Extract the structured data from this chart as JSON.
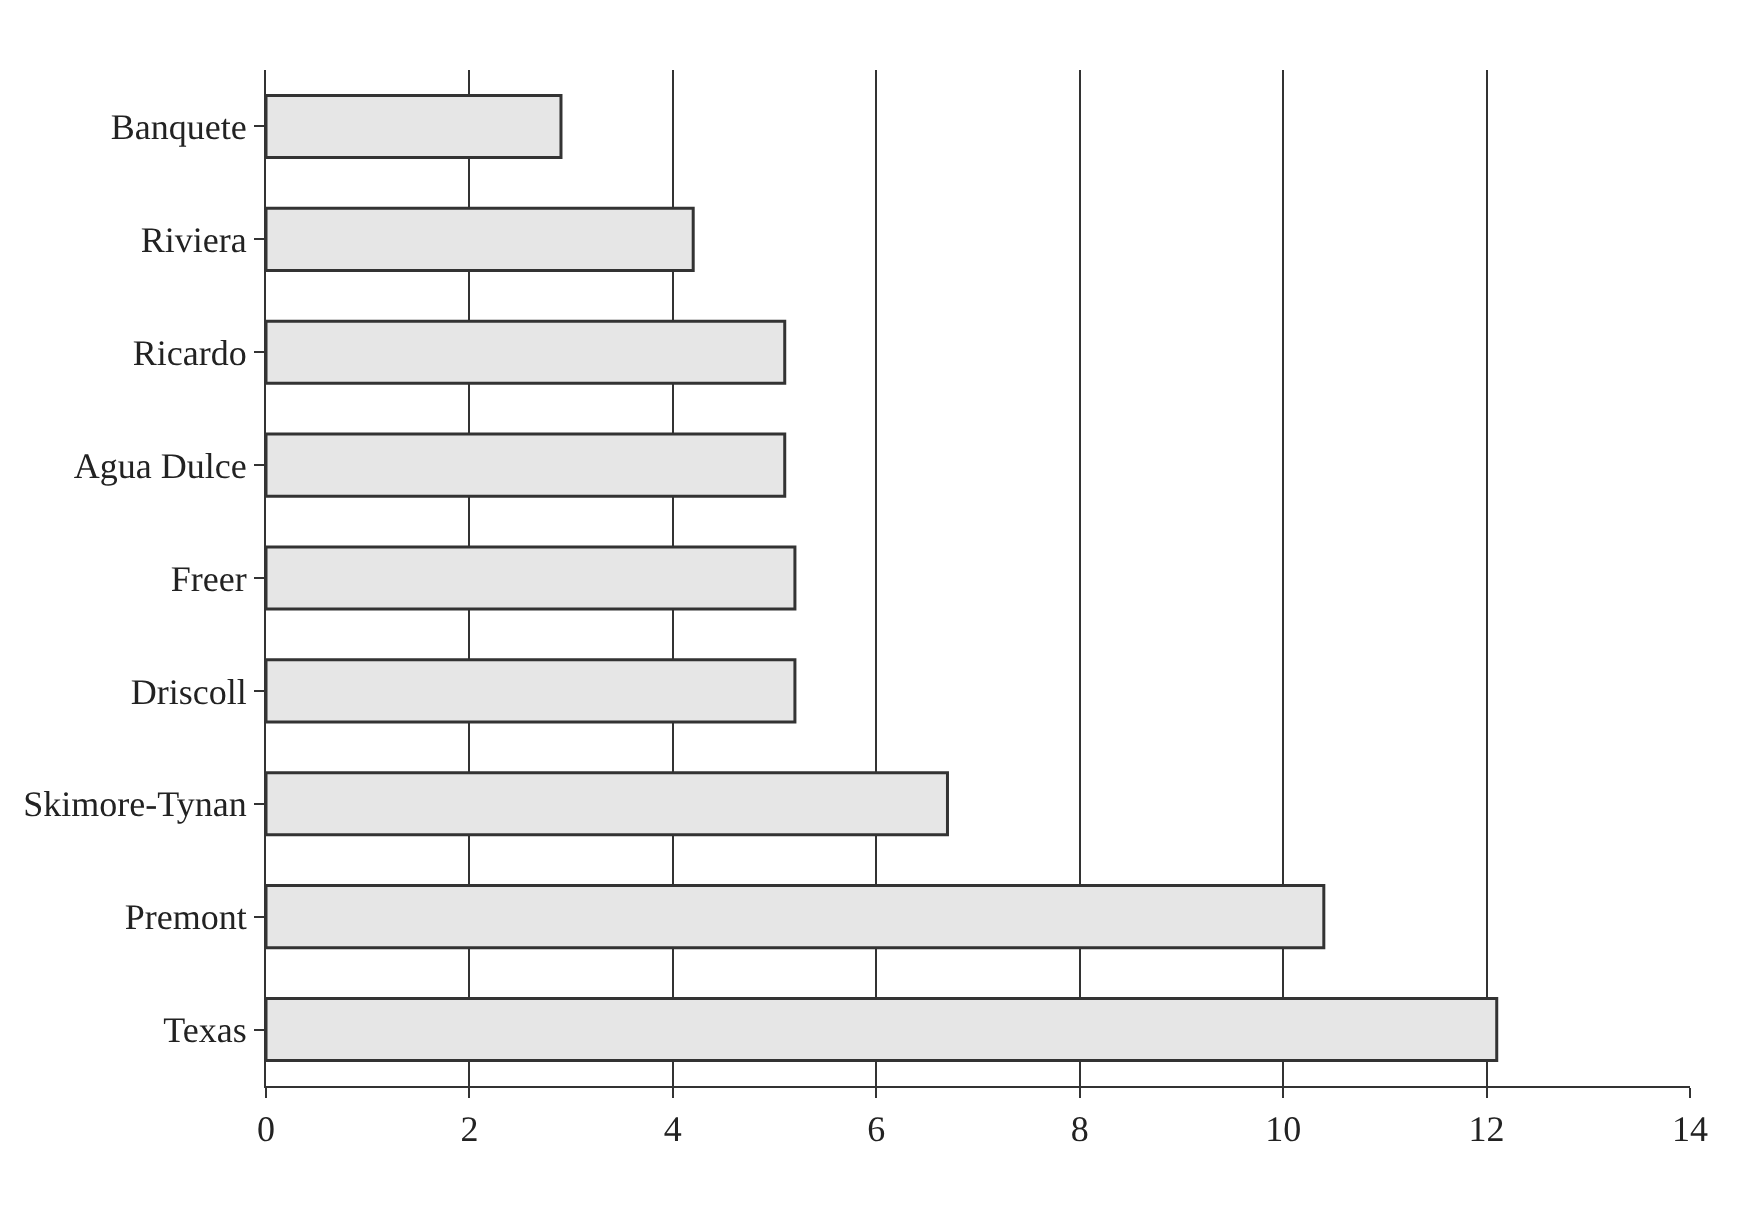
{
  "chart_data": {
    "type": "bar",
    "orientation": "horizontal",
    "categories": [
      "Banquete",
      "Riviera",
      "Ricardo",
      "Agua Dulce",
      "Freer",
      "Driscoll",
      "Skimore-Tynan",
      "Premont",
      "Texas"
    ],
    "values": [
      2.9,
      4.2,
      5.1,
      5.1,
      5.2,
      5.2,
      6.7,
      10.4,
      12.1
    ],
    "color": "#e6e6e6",
    "xlim": [
      0,
      14
    ],
    "xticks": [
      0,
      2,
      4,
      6,
      8,
      10,
      12,
      14
    ],
    "grid": "x",
    "legend": false
  }
}
